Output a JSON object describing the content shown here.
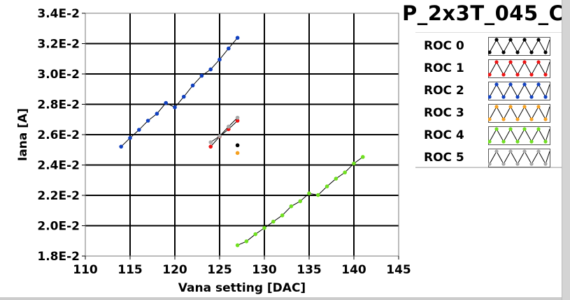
{
  "title": "P_2x3T_045_C",
  "chart_data": {
    "type": "scatter",
    "xlabel": "Vana setting [DAC]",
    "ylabel": "Iana [A]",
    "xlim": [
      110,
      145
    ],
    "ylim": [
      0.018,
      0.034
    ],
    "xticks": [
      110,
      115,
      120,
      125,
      130,
      135,
      140,
      145
    ],
    "xtick_labels": [
      "110",
      "115",
      "120",
      "125",
      "130",
      "135",
      "140",
      "145"
    ],
    "yticks": [
      0.018,
      0.02,
      0.022,
      0.024,
      0.026,
      0.028,
      0.03,
      0.032,
      0.034
    ],
    "ytick_labels": [
      "1.8E-2",
      "2.0E-2",
      "2.2E-2",
      "2.4E-2",
      "2.6E-2",
      "2.8E-2",
      "3.0E-2",
      "3.2E-2",
      "3.4E-2"
    ],
    "grid": true,
    "legend_placement": "right",
    "series": [
      {
        "name": "ROC 0",
        "color": "#000000",
        "x": [
          127
        ],
        "y": [
          0.0253
        ]
      },
      {
        "name": "ROC 1",
        "color": "#ee1111",
        "x": [
          124,
          125,
          126,
          127
        ],
        "y": [
          0.02521,
          0.02588,
          0.02636,
          0.02692
        ]
      },
      {
        "name": "ROC 2",
        "color": "#1040c0",
        "x": [
          114,
          115,
          116,
          117,
          118,
          119,
          120,
          121,
          122,
          123,
          124,
          125,
          126,
          127
        ],
        "y": [
          0.02521,
          0.02578,
          0.02632,
          0.02692,
          0.02738,
          0.02809,
          0.0278,
          0.0285,
          0.02924,
          0.02988,
          0.0303,
          0.03095,
          0.03168,
          0.03238
        ]
      },
      {
        "name": "ROC 3",
        "color": "#f5a020",
        "x": [
          127
        ],
        "y": [
          0.02479
        ]
      },
      {
        "name": "ROC 4",
        "color": "#70e020",
        "x": [
          127,
          128,
          129,
          130,
          131,
          132,
          133,
          134,
          135,
          136,
          137,
          138,
          139,
          140,
          141
        ],
        "y": [
          0.01871,
          0.01897,
          0.01944,
          0.01985,
          0.02027,
          0.02068,
          0.02128,
          0.02161,
          0.02213,
          0.02202,
          0.02259,
          0.0231,
          0.02351,
          0.0241,
          0.02453
        ]
      },
      {
        "name": "ROC 5",
        "color": "#a8a8a8",
        "x": [
          124,
          125,
          126,
          127
        ],
        "y": [
          0.0255,
          0.0259,
          0.02653,
          0.02712
        ]
      }
    ]
  }
}
